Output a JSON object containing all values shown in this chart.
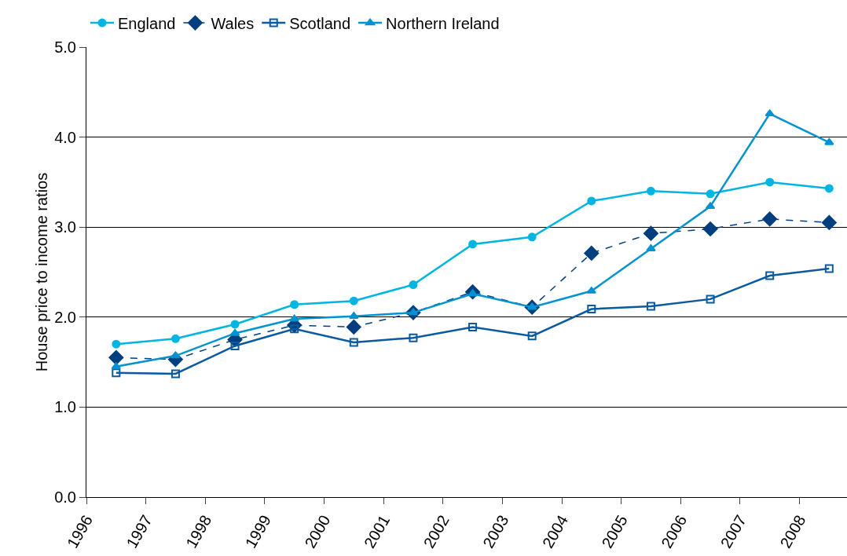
{
  "chart_data": {
    "type": "line",
    "ylabel": "House price to income ratios",
    "x": [
      1996.5,
      1997.5,
      1998.5,
      1999.5,
      2000.5,
      2001.5,
      2002.5,
      2003.5,
      2004.5,
      2005.5,
      2006.5,
      2007.5,
      2008.5
    ],
    "xlim": [
      1996,
      2008.8
    ],
    "xticks": [
      1996,
      1997,
      1998,
      1999,
      2000,
      2001,
      2002,
      2003,
      2004,
      2005,
      2006,
      2007,
      2008
    ],
    "ylim": [
      0,
      5
    ],
    "yticks": [
      {
        "value": 0,
        "label": "0.0"
      },
      {
        "value": 1,
        "label": "1.0"
      },
      {
        "value": 2,
        "label": "2.0"
      },
      {
        "value": 3,
        "label": "3.0"
      },
      {
        "value": 4,
        "label": "4.0"
      },
      {
        "value": 5,
        "label": "5.0"
      }
    ],
    "grid": "y",
    "legend": "top left",
    "series": [
      {
        "name": "England",
        "color": "#00b5e2",
        "marker": "circle",
        "line_style": "solid",
        "values": [
          1.7,
          1.76,
          1.92,
          2.14,
          2.18,
          2.36,
          2.81,
          2.89,
          3.29,
          3.4,
          3.37,
          3.5,
          3.43
        ]
      },
      {
        "name": "Wales",
        "color": "#003f7f",
        "marker": "diamond",
        "line_style": "dashed",
        "values": [
          1.55,
          1.53,
          1.75,
          1.91,
          1.89,
          2.05,
          2.28,
          2.11,
          2.71,
          2.93,
          2.98,
          3.09,
          3.05
        ]
      },
      {
        "name": "Scotland",
        "color": "#0a5aa0",
        "marker": "square",
        "line_style": "solid",
        "values": [
          1.38,
          1.37,
          1.68,
          1.87,
          1.72,
          1.77,
          1.89,
          1.79,
          2.09,
          2.12,
          2.2,
          2.46,
          2.54
        ]
      },
      {
        "name": "Northern Ireland",
        "color": "#0093d0",
        "marker": "triangle",
        "line_style": "solid",
        "values": [
          1.45,
          1.57,
          1.82,
          1.98,
          2.01,
          2.05,
          2.26,
          2.11,
          2.29,
          2.76,
          3.23,
          4.26,
          3.94
        ]
      }
    ]
  }
}
